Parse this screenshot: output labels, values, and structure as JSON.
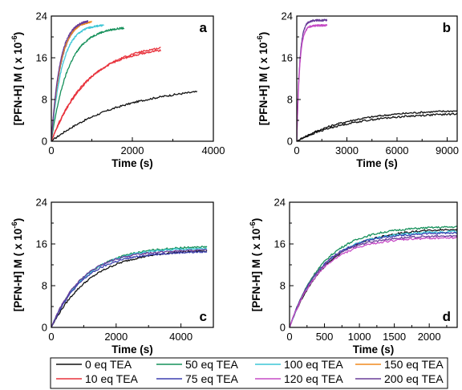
{
  "series_colors": {
    "0 eq TEA": "#111111",
    "10 eq TEA": "#e8323c",
    "50 eq TEA": "#15905a",
    "75 eq TEA": "#3b3fb0",
    "100 eq TEA": "#3cc6d6",
    "120 eq TEA": "#c64bc6",
    "150 eq TEA": "#f08a1e",
    "200 eq TEA": "#6a3d99"
  },
  "legend": {
    "placement": "bottom",
    "entries": [
      "0 eq TEA",
      "10 eq TEA",
      "50 eq TEA",
      "75 eq TEA",
      "100 eq TEA",
      "120 eq TEA",
      "150 eq TEA",
      "200 eq TEA"
    ]
  },
  "chart_data": [
    {
      "type": "line",
      "panel_label": "a",
      "xlabel": "Time (s)",
      "ylabel": "[PFN-H] M ( x 10",
      "ylabel_sup": "-6",
      "ylabel_end": ")",
      "xlim": [
        0,
        4000
      ],
      "ylim": [
        0,
        24
      ],
      "xticks": [
        0,
        2000,
        4000
      ],
      "yticks": [
        0,
        8,
        16,
        24
      ],
      "series": [
        {
          "name": "0 eq TEA",
          "tmax": 3600,
          "plateau": 11.0,
          "k": 0.00055
        },
        {
          "name": "10 eq TEA",
          "tmax": 2700,
          "plateau": 19.0,
          "k": 0.00105
        },
        {
          "name": "10 eq TEA",
          "tmax": 2700,
          "plateau": 18.2,
          "k": 0.00115
        },
        {
          "name": "50 eq TEA",
          "tmax": 1800,
          "plateau": 22.0,
          "k": 0.0024
        },
        {
          "name": "75 eq TEA",
          "tmax": 900,
          "plateau": 23.5,
          "k": 0.0042
        },
        {
          "name": "100 eq TEA",
          "tmax": 1300,
          "plateau": 22.4,
          "k": 0.0038
        },
        {
          "name": "150 eq TEA",
          "tmax": 1000,
          "plateau": 23.2,
          "k": 0.0044
        },
        {
          "name": "200 eq TEA",
          "tmax": 900,
          "plateau": 23.3,
          "k": 0.0047
        }
      ]
    },
    {
      "type": "line",
      "panel_label": "b",
      "xlabel": "Time (s)",
      "ylabel": "[PFN-H] M ( x 10",
      "ylabel_sup": "-6",
      "ylabel_end": ")",
      "xlim": [
        0,
        9600
      ],
      "ylim": [
        0,
        24
      ],
      "xticks": [
        0,
        3000,
        6000,
        9000
      ],
      "yticks": [
        0,
        8,
        16,
        24
      ],
      "series": [
        {
          "name": "0 eq TEA",
          "tmax": 9600,
          "plateau": 6.1,
          "k": 0.00032
        },
        {
          "name": "0 eq TEA",
          "tmax": 9600,
          "plateau": 5.5,
          "k": 0.00031
        },
        {
          "name": "200 eq TEA",
          "tmax": 1800,
          "plateau": 23.2,
          "k": 0.0058
        },
        {
          "name": "120 eq TEA",
          "tmax": 1800,
          "plateau": 22.2,
          "k": 0.0058
        }
      ]
    },
    {
      "type": "line",
      "panel_label": "c",
      "xlabel": "Time (s)",
      "ylabel": "[PFN-H] M ( x 10",
      "ylabel_sup": "-6",
      "ylabel_end": ")",
      "xlim": [
        0,
        5000
      ],
      "ylim": [
        0,
        24
      ],
      "xticks": [
        0,
        2000,
        4000
      ],
      "yticks": [
        0,
        8,
        16,
        24
      ],
      "series": [
        {
          "name": "0 eq TEA",
          "tmax": 4800,
          "plateau": 15.0,
          "k": 0.00082
        },
        {
          "name": "50 eq TEA",
          "tmax": 4800,
          "plateau": 15.6,
          "k": 0.00095
        },
        {
          "name": "100 eq TEA",
          "tmax": 4800,
          "plateau": 15.3,
          "k": 0.00098
        },
        {
          "name": "75 eq TEA",
          "tmax": 4800,
          "plateau": 14.6,
          "k": 0.001
        },
        {
          "name": "200 eq TEA",
          "tmax": 4800,
          "plateau": 14.9,
          "k": 0.00105
        }
      ]
    },
    {
      "type": "line",
      "panel_label": "d",
      "xlabel": "Time (s)",
      "ylabel": "[PFN-H] M ( x 10",
      "ylabel_sup": "-6",
      "ylabel_end": ")",
      "xlim": [
        0,
        2400
      ],
      "ylim": [
        0,
        24
      ],
      "xticks": [
        0,
        500,
        1000,
        1500,
        2000
      ],
      "yticks": [
        0,
        8,
        16,
        24
      ],
      "series": [
        {
          "name": "50 eq TEA",
          "tmax": 2400,
          "plateau": 19.4,
          "k": 0.0021
        },
        {
          "name": "0 eq TEA",
          "tmax": 2400,
          "plateau": 19.0,
          "k": 0.0019
        },
        {
          "name": "100 eq TEA",
          "tmax": 2400,
          "plateau": 18.5,
          "k": 0.0021
        },
        {
          "name": "75 eq TEA",
          "tmax": 2400,
          "plateau": 18.2,
          "k": 0.0022
        },
        {
          "name": "200 eq TEA",
          "tmax": 2400,
          "plateau": 17.6,
          "k": 0.0023
        },
        {
          "name": "120 eq TEA",
          "tmax": 2400,
          "plateau": 17.3,
          "k": 0.0022
        }
      ]
    }
  ]
}
